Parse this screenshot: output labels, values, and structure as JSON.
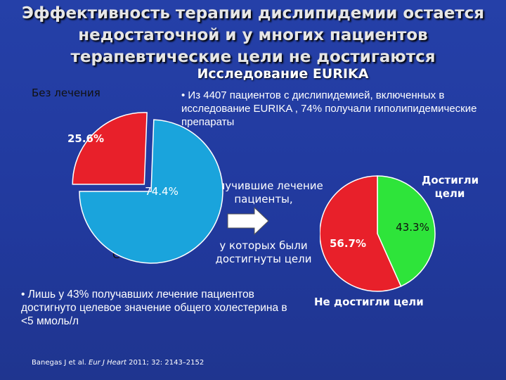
{
  "title_lines": [
    "Эффективность терапии дислипидемии остается",
    "недостаточной и у многих пациентов",
    "терапевтические цели не достигаются"
  ],
  "subtitle": "Исследование EURIKA",
  "bullet_top": "• Из 4407 пациентов с дислипидемией, включенных в исследование EURIKA , 74% получали гиполипидемические препараты",
  "bullet_bottom": "• Лишь у 43% получавших лечение пациентов достигнуто целевое значение общего холестерина в <5 ммоль/л",
  "labels": {
    "untreated": "Без лечения",
    "treated": "С лечением",
    "received_treatment": "Получившие лечение пациенты,",
    "who_achieved": "у которых были достигнуты цели",
    "achieved": "Достигли цели",
    "not_achieved": "Не достигли цели"
  },
  "citation": {
    "authors": "Banegas J et al. ",
    "journal": "Eur J Heart",
    "details": " 2011; 32: 2143–2152"
  },
  "colors": {
    "background": "#2340a0",
    "red": "#e8202a",
    "blue": "#1aa4dc",
    "green": "#2ee43a"
  },
  "chart_data": [
    {
      "type": "pie",
      "title": "",
      "slices": [
        {
          "label": "Без лечения",
          "value": 25.6,
          "value_label": "25.6%",
          "color": "#e8202a",
          "exploded": true
        },
        {
          "label": "С лечением",
          "value": 74.4,
          "value_label": "74.4%",
          "color": "#1aa4dc"
        }
      ]
    },
    {
      "type": "pie",
      "title": "",
      "slices": [
        {
          "label": "Достигли цели",
          "value": 43.3,
          "value_label": "43.3%",
          "color": "#2ee43a"
        },
        {
          "label": "Не достигли цели",
          "value": 56.7,
          "value_label": "56.7%",
          "color": "#e8202a"
        }
      ]
    }
  ]
}
